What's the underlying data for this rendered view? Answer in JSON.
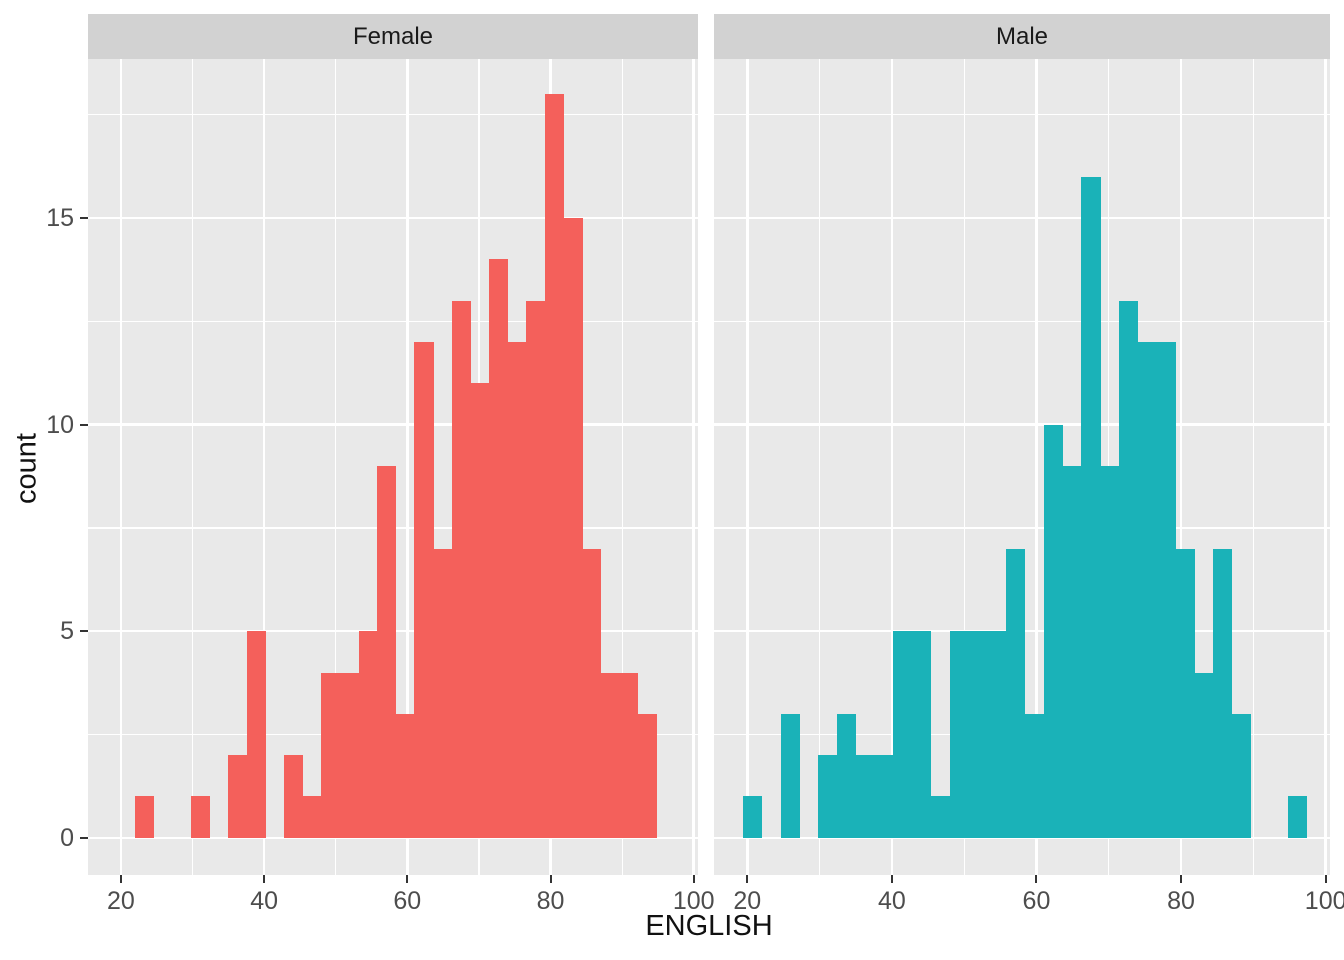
{
  "chart_data": {
    "type": "bar",
    "subtype": "faceted-histogram",
    "title": "",
    "xlabel": "ENGLISH",
    "ylabel": "count",
    "binwidth": 2.6,
    "x_ticks": [
      20,
      40,
      60,
      80,
      100
    ],
    "x_minor": [
      30,
      50,
      70,
      90
    ],
    "y_ticks": [
      0,
      5,
      10,
      15
    ],
    "y_minor": [
      2.5,
      7.5,
      12.5,
      17.5
    ],
    "xlim": [
      15.4,
      100.6
    ],
    "ylim": [
      -0.9,
      18.85
    ],
    "grid": true,
    "legend": "none",
    "facets": [
      {
        "label": "Female",
        "color": "#F4605B",
        "bins": [
          {
            "x": 22.0,
            "count": 1
          },
          {
            "x": 29.8,
            "count": 1
          },
          {
            "x": 35.0,
            "count": 2
          },
          {
            "x": 37.6,
            "count": 5
          },
          {
            "x": 42.8,
            "count": 2
          },
          {
            "x": 45.4,
            "count": 1
          },
          {
            "x": 48.0,
            "count": 4
          },
          {
            "x": 50.6,
            "count": 4
          },
          {
            "x": 53.2,
            "count": 5
          },
          {
            "x": 55.8,
            "count": 9
          },
          {
            "x": 58.4,
            "count": 3
          },
          {
            "x": 61.0,
            "count": 12
          },
          {
            "x": 63.6,
            "count": 7
          },
          {
            "x": 66.2,
            "count": 13
          },
          {
            "x": 68.8,
            "count": 11
          },
          {
            "x": 71.4,
            "count": 14
          },
          {
            "x": 74.0,
            "count": 12
          },
          {
            "x": 76.6,
            "count": 13
          },
          {
            "x": 79.2,
            "count": 18
          },
          {
            "x": 81.8,
            "count": 15
          },
          {
            "x": 84.4,
            "count": 7
          },
          {
            "x": 87.0,
            "count": 4
          },
          {
            "x": 89.6,
            "count": 4
          },
          {
            "x": 92.2,
            "count": 3
          }
        ]
      },
      {
        "label": "Male",
        "color": "#1AB2B8",
        "bins": [
          {
            "x": 19.4,
            "count": 1
          },
          {
            "x": 24.6,
            "count": 3
          },
          {
            "x": 29.8,
            "count": 2
          },
          {
            "x": 32.4,
            "count": 3
          },
          {
            "x": 35.0,
            "count": 2
          },
          {
            "x": 37.6,
            "count": 2
          },
          {
            "x": 40.2,
            "count": 5
          },
          {
            "x": 42.8,
            "count": 5
          },
          {
            "x": 45.4,
            "count": 1
          },
          {
            "x": 48.0,
            "count": 5
          },
          {
            "x": 50.6,
            "count": 5
          },
          {
            "x": 53.2,
            "count": 5
          },
          {
            "x": 55.8,
            "count": 7
          },
          {
            "x": 58.4,
            "count": 3
          },
          {
            "x": 61.0,
            "count": 10
          },
          {
            "x": 63.6,
            "count": 9
          },
          {
            "x": 66.2,
            "count": 16
          },
          {
            "x": 68.8,
            "count": 9
          },
          {
            "x": 71.4,
            "count": 13
          },
          {
            "x": 74.0,
            "count": 12
          },
          {
            "x": 76.6,
            "count": 12
          },
          {
            "x": 79.2,
            "count": 7
          },
          {
            "x": 81.8,
            "count": 4
          },
          {
            "x": 84.4,
            "count": 7
          },
          {
            "x": 87.0,
            "count": 3
          },
          {
            "x": 94.8,
            "count": 1
          }
        ]
      }
    ]
  },
  "colors": {
    "panel_bg": "#E9E9E9",
    "strip_bg": "#D2D2D2",
    "gridline": "#FFFFFF",
    "axis_text": "#4D4D4D",
    "title_text": "#111111",
    "tick_mark": "#333333"
  }
}
